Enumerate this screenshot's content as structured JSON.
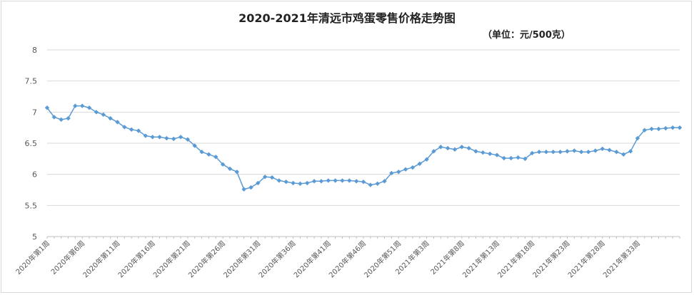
{
  "chart_data": {
    "type": "line",
    "title": "2020-2021年清远市鸡蛋零售价格走势图",
    "subtitle": "（单位：元/500克）",
    "xlabel": "",
    "ylabel": "",
    "ylim": [
      5,
      8
    ],
    "yticks": [
      "5",
      "5.5",
      "6",
      "6.5",
      "7",
      "7.5",
      "8"
    ],
    "grid": true,
    "legend": "none",
    "line_color": "#5b9bd5",
    "x_tick_labels": [
      {
        "index": 0,
        "label": "2020年第1周"
      },
      {
        "index": 5,
        "label": "2020年第6周"
      },
      {
        "index": 10,
        "label": "2020年第11周"
      },
      {
        "index": 15,
        "label": "2020年第16周"
      },
      {
        "index": 20,
        "label": "2020年第21周"
      },
      {
        "index": 25,
        "label": "2020年第26周"
      },
      {
        "index": 30,
        "label": "2020年第31周"
      },
      {
        "index": 35,
        "label": "2020年第36周"
      },
      {
        "index": 40,
        "label": "2020年第41周"
      },
      {
        "index": 45,
        "label": "2020年第46周"
      },
      {
        "index": 50,
        "label": "2020年第51周"
      },
      {
        "index": 54,
        "label": "2021年第3周"
      },
      {
        "index": 59,
        "label": "2021年第8周"
      },
      {
        "index": 64,
        "label": "2021年第13周"
      },
      {
        "index": 69,
        "label": "2021年第18周"
      },
      {
        "index": 74,
        "label": "2021年第23周"
      },
      {
        "index": 79,
        "label": "2021年第28周"
      },
      {
        "index": 84,
        "label": "2021年第33周"
      }
    ],
    "values": [
      7.07,
      6.92,
      6.88,
      6.9,
      7.1,
      7.1,
      7.07,
      7.0,
      6.96,
      6.9,
      6.84,
      6.76,
      6.72,
      6.7,
      6.62,
      6.6,
      6.6,
      6.58,
      6.57,
      6.6,
      6.56,
      6.46,
      6.36,
      6.32,
      6.28,
      6.16,
      6.09,
      6.04,
      5.76,
      5.79,
      5.86,
      5.96,
      5.95,
      5.9,
      5.88,
      5.86,
      5.85,
      5.86,
      5.89,
      5.89,
      5.9,
      5.9,
      5.9,
      5.9,
      5.89,
      5.88,
      5.83,
      5.85,
      5.89,
      6.02,
      6.04,
      6.08,
      6.11,
      6.17,
      6.24,
      6.37,
      6.44,
      6.42,
      6.4,
      6.44,
      6.42,
      6.37,
      6.35,
      6.33,
      6.31,
      6.26,
      6.26,
      6.27,
      6.25,
      6.34,
      6.36,
      6.36,
      6.36,
      6.36,
      6.37,
      6.38,
      6.36,
      6.36,
      6.38,
      6.41,
      6.39,
      6.36,
      6.32,
      6.37,
      6.58,
      6.71,
      6.73,
      6.73,
      6.74,
      6.75,
      6.75
    ]
  }
}
